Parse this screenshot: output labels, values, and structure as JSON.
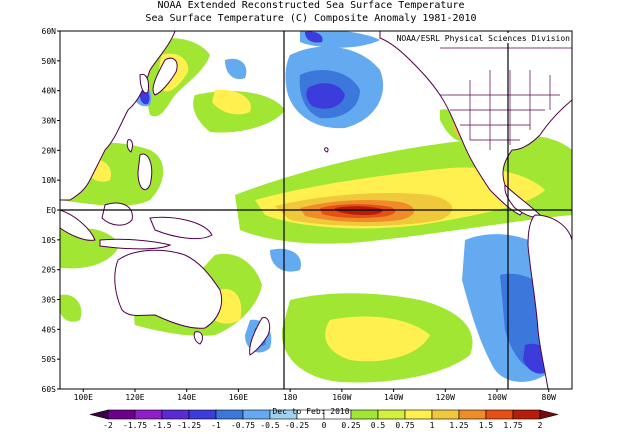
{
  "title_line1": "NOAA Extended Reconstructed Sea Surface Temperature",
  "title_line2": "Sea Surface Temperature (C) Composite Anomaly 1981-2010",
  "credit": "NOAA/ESRL Physical Sciences Division",
  "period": "Dec to Feb: 2010",
  "lat_labels": [
    "60N",
    "50N",
    "40N",
    "30N",
    "20N",
    "10N",
    "EQ",
    "10S",
    "20S",
    "30S",
    "40S",
    "50S",
    "60S"
  ],
  "lon_labels": [
    "100E",
    "120E",
    "140E",
    "160E",
    "180",
    "160W",
    "140W",
    "120W",
    "100W",
    "80W"
  ],
  "colorbar": {
    "ticks": [
      "-2",
      "-1.75",
      "-1.5",
      "-1.25",
      "-1",
      "-0.75",
      "-0.5",
      "-0.25",
      "0",
      "0.25",
      "0.5",
      "0.75",
      "1",
      "1.25",
      "1.5",
      "1.75",
      "2"
    ],
    "colors": [
      "#3c0046",
      "#6a008c",
      "#8e1ec8",
      "#5a2ad2",
      "#3c3cdc",
      "#3c78dc",
      "#64aaf0",
      "#a0d2f0",
      "#ffffff",
      "#ffffff",
      "#a0e632",
      "#d2f03c",
      "#fff050",
      "#f0c83c",
      "#f08c28",
      "#e65014",
      "#b41e0a",
      "#780a0a"
    ]
  },
  "colors": {
    "land_outline": "#50004a",
    "grid": "#000000",
    "warm_light": "#a0e632",
    "warm_yellow": "#fff050",
    "warm_orange": "#f0c83c",
    "warm_strong": "#f08c28",
    "warm_red": "#c83214",
    "cold_light": "#64aaf0",
    "cold_mid": "#3c78dc",
    "cold_deep": "#3c3cdc"
  }
}
